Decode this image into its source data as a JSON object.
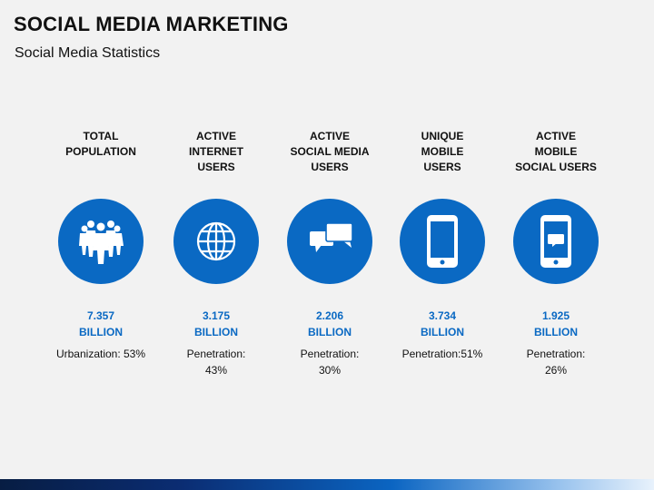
{
  "header": {
    "title": "SOCIAL MEDIA MARKETING",
    "subtitle": "Social Media Statistics"
  },
  "theme": {
    "accent": "#0a69c3",
    "text": "#111111",
    "background": "#f2f2f2"
  },
  "stats": [
    {
      "heading": [
        "TOTAL",
        "POPULATION"
      ],
      "icon": "people-group-icon",
      "value": [
        "7.357",
        "BILLION"
      ],
      "note": [
        "Urbanization: 53%"
      ]
    },
    {
      "heading": [
        "ACTIVE",
        "INTERNET",
        "USERS"
      ],
      "icon": "globe-icon",
      "value": [
        "3.175",
        "BILLION"
      ],
      "note": [
        "Penetration:",
        "43%"
      ]
    },
    {
      "heading": [
        "ACTIVE",
        "SOCIAL MEDIA",
        "USERS"
      ],
      "icon": "chat-bubbles-icon",
      "value": [
        "2.206",
        "BILLION"
      ],
      "note": [
        "Penetration:",
        "30%"
      ]
    },
    {
      "heading": [
        "UNIQUE",
        "MOBILE",
        "USERS"
      ],
      "icon": "mobile-phone-icon",
      "value": [
        "3.734",
        "BILLION"
      ],
      "note": [
        "Penetration:51%"
      ]
    },
    {
      "heading": [
        "ACTIVE",
        "MOBILE",
        "SOCIAL USERS"
      ],
      "icon": "mobile-chat-icon",
      "value": [
        "1.925",
        "BILLION"
      ],
      "note": [
        "Penetration:",
        "26%"
      ]
    }
  ]
}
